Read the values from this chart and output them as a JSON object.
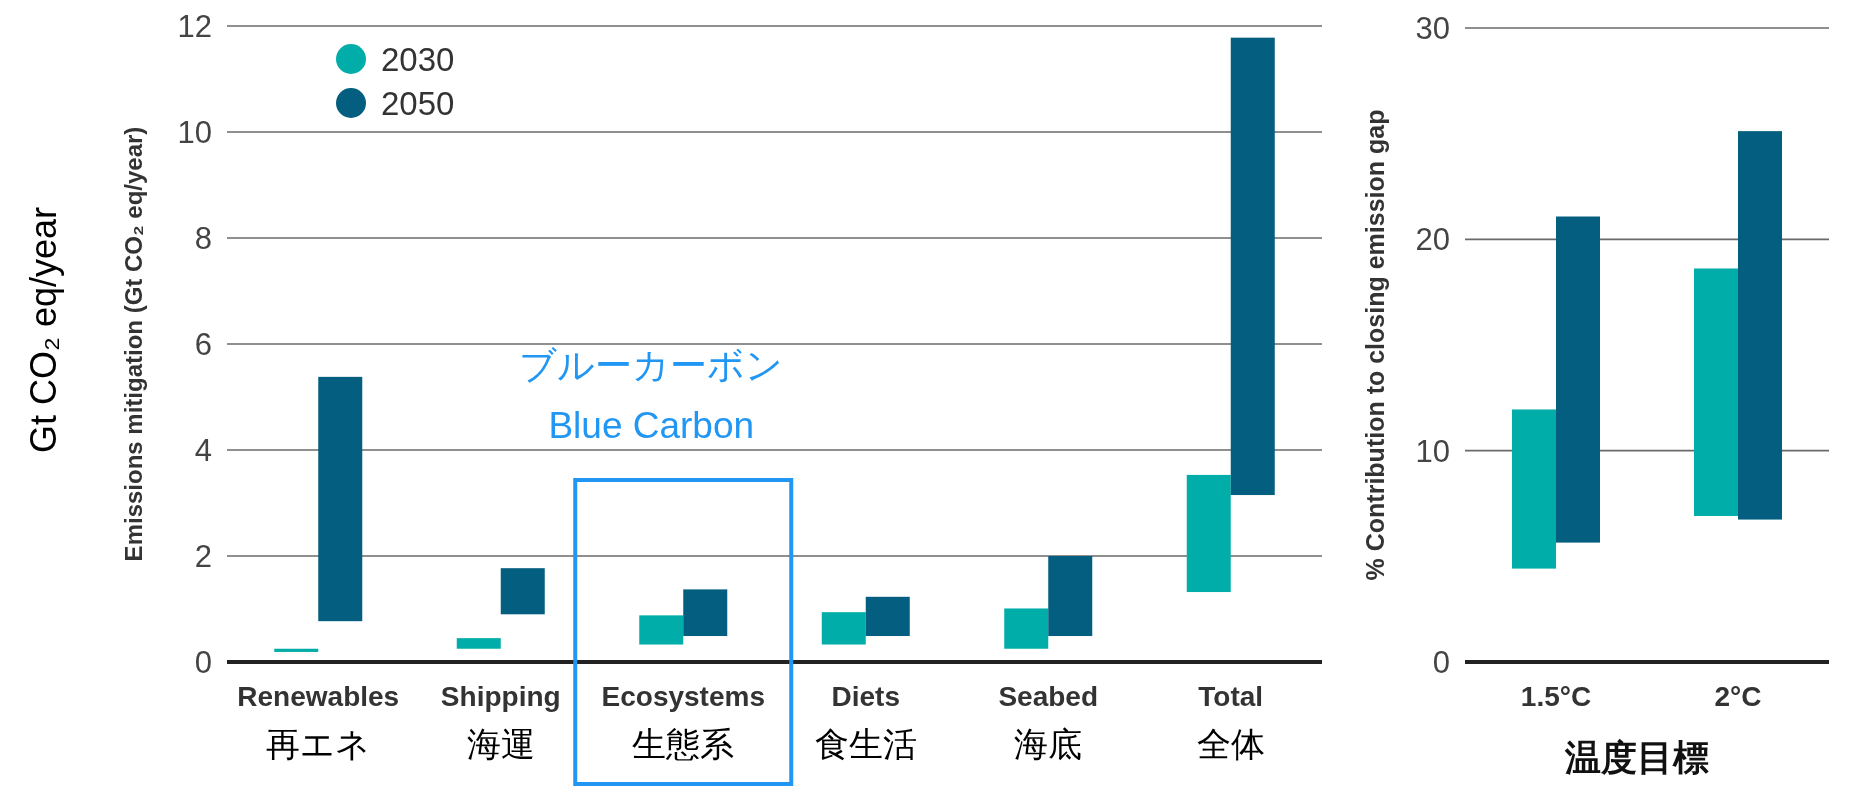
{
  "chart_data": [
    {
      "type": "bar",
      "ylabel": "Emissions mitigation (Gt CO₂ eq/year)",
      "categories": [
        "Renewables\n再エネ",
        "Shipping\n海運",
        "Ecosystems\n生態系",
        "Diets\n食生活",
        "Seabed\n海底",
        "Total\n全体"
      ],
      "series": [
        {
          "name": "2030",
          "color": "#00ada9",
          "base": [
            0.19,
            0.25,
            0.33,
            0.33,
            0.25,
            1.32
          ],
          "values": [
            0.06,
            0.2,
            0.55,
            0.61,
            0.76,
            2.21
          ]
        },
        {
          "name": "2050",
          "color": "#035e80",
          "base": [
            0.77,
            0.9,
            0.49,
            0.49,
            0.49,
            3.15
          ],
          "values": [
            4.61,
            0.87,
            0.88,
            0.74,
            1.51,
            8.63
          ]
        }
      ],
      "ylim": [
        0,
        12
      ],
      "yticks": [
        0,
        2,
        4,
        6,
        8,
        10,
        12
      ],
      "grid": "y",
      "legend": "top left",
      "annotations": [
        "ブルーカーボン\nBlue Carbon",
        "Gt CO₂ eq/year"
      ]
    },
    {
      "type": "bar",
      "ylabel": "% Contribution to closing emission gap",
      "xlabel": "温度目標",
      "categories": [
        "1.5°C",
        "2°C"
      ],
      "series": [
        {
          "color": "#00ada9",
          "base": [
            4.42,
            6.91
          ],
          "values": [
            7.53,
            11.71
          ]
        },
        {
          "color": "#035e80",
          "base": [
            5.65,
            6.74
          ],
          "values": [
            15.43,
            18.38
          ]
        }
      ],
      "ylim": [
        0,
        30
      ],
      "yticks": [
        0,
        10,
        20,
        30
      ],
      "grid": "y",
      "legend": false
    }
  ]
}
